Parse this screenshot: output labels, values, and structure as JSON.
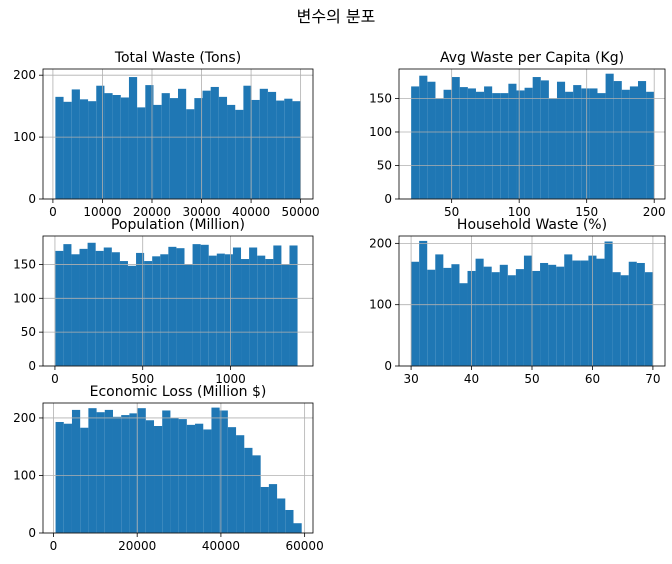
{
  "figure": {
    "suptitle": "변수의 분포",
    "bar_color": "#1f77b4",
    "grid_color": "#b0b0b0"
  },
  "chart_data": [
    {
      "type": "bar",
      "title": "Total Waste (Tons)",
      "xlim": [
        -2000,
        52500
      ],
      "ylim": [
        0,
        210
      ],
      "xticks": [
        0,
        10000,
        20000,
        30000,
        40000,
        50000
      ],
      "xtick_labels": [
        "0",
        "10000",
        "20000",
        "30000",
        "40000",
        "50000"
      ],
      "yticks": [
        0,
        100,
        200
      ],
      "ytick_labels": [
        "0",
        "100",
        "200"
      ],
      "bin_edges": [
        500,
        2150,
        3800,
        5450,
        7100,
        8750,
        10400,
        12050,
        13700,
        15350,
        17000,
        18650,
        20300,
        21950,
        23600,
        25250,
        26900,
        28550,
        30200,
        31850,
        33500,
        35150,
        36800,
        38450,
        40100,
        41750,
        43400,
        45050,
        46700,
        48350,
        50000
      ],
      "values": [
        165,
        157,
        177,
        161,
        158,
        183,
        171,
        168,
        164,
        197,
        148,
        184,
        152,
        171,
        163,
        178,
        145,
        163,
        175,
        181,
        165,
        152,
        144,
        183,
        160,
        178,
        173,
        159,
        162,
        158
      ],
      "grid": true
    },
    {
      "type": "bar",
      "title": "Avg Waste per Capita (Kg)",
      "xlim": [
        11,
        208
      ],
      "ylim": [
        0,
        194
      ],
      "xticks": [
        50,
        100,
        150,
        200
      ],
      "xtick_labels": [
        "50",
        "100",
        "150",
        "200"
      ],
      "yticks": [
        0,
        50,
        100,
        150
      ],
      "ytick_labels": [
        "0",
        "50",
        "100",
        "150"
      ],
      "bin_edges": [
        20,
        26,
        32,
        38,
        44,
        50,
        56,
        62,
        68,
        74,
        80,
        86,
        92,
        98,
        104,
        110,
        116,
        122,
        128,
        134,
        140,
        146,
        152,
        158,
        164,
        170,
        176,
        182,
        188,
        194,
        200
      ],
      "values": [
        168,
        184,
        175,
        150,
        163,
        182,
        167,
        165,
        160,
        168,
        158,
        158,
        172,
        162,
        166,
        182,
        177,
        150,
        175,
        160,
        170,
        165,
        165,
        158,
        187,
        176,
        163,
        168,
        176,
        160
      ],
      "grid": true
    },
    {
      "type": "bar",
      "title": "Population (Million)",
      "xlim": [
        -68,
        1470
      ],
      "ylim": [
        0,
        192
      ],
      "xticks": [
        0,
        500,
        1000
      ],
      "xtick_labels": [
        "0",
        "500",
        "1000"
      ],
      "yticks": [
        0,
        50,
        100,
        150
      ],
      "ytick_labels": [
        "0",
        "50",
        "100",
        "150"
      ],
      "bin_edges": [
        2,
        48,
        94,
        140,
        186,
        232,
        278,
        324,
        370,
        416,
        462,
        508,
        554,
        600,
        646,
        692,
        738,
        784,
        830,
        876,
        922,
        968,
        1014,
        1060,
        1106,
        1152,
        1198,
        1244,
        1290,
        1336,
        1382
      ],
      "values": [
        170,
        180,
        165,
        173,
        182,
        170,
        175,
        168,
        155,
        148,
        167,
        155,
        162,
        165,
        176,
        174,
        150,
        180,
        179,
        163,
        166,
        165,
        175,
        158,
        175,
        163,
        158,
        178,
        150,
        178
      ],
      "grid": true
    },
    {
      "type": "bar",
      "title": "Household Waste (%)",
      "xlim": [
        28,
        72
      ],
      "ylim": [
        0,
        212
      ],
      "xticks": [
        30,
        40,
        50,
        60,
        70
      ],
      "xtick_labels": [
        "30",
        "40",
        "50",
        "60",
        "70"
      ],
      "yticks": [
        0,
        100,
        200
      ],
      "ytick_labels": [
        "0",
        "100",
        "200"
      ],
      "bin_edges": [
        30,
        31.333,
        32.667,
        34,
        35.333,
        36.667,
        38,
        39.333,
        40.667,
        42,
        43.333,
        44.667,
        46,
        47.333,
        48.667,
        50,
        51.333,
        52.667,
        54,
        55.333,
        56.667,
        58,
        59.333,
        60.667,
        62,
        63.333,
        64.667,
        66,
        67.333,
        68.667,
        70
      ],
      "values": [
        170,
        204,
        157,
        182,
        160,
        166,
        135,
        155,
        175,
        162,
        153,
        165,
        148,
        158,
        180,
        155,
        168,
        165,
        162,
        182,
        172,
        172,
        180,
        175,
        203,
        153,
        148,
        170,
        168,
        153
      ],
      "grid": true
    },
    {
      "type": "bar",
      "title": "Economic Loss (Million $)",
      "xlim": [
        -2500,
        62000
      ],
      "ylim": [
        0,
        226
      ],
      "xticks": [
        0,
        20000,
        40000,
        60000
      ],
      "xtick_labels": [
        "0",
        "20000",
        "40000",
        "60000"
      ],
      "yticks": [
        0,
        100,
        200
      ],
      "ytick_labels": [
        "0",
        "100",
        "200"
      ],
      "bin_edges": [
        500,
        2460,
        4420,
        6380,
        8340,
        10300,
        12260,
        14220,
        16180,
        18140,
        20100,
        22060,
        24020,
        25980,
        27940,
        29900,
        31860,
        33820,
        35780,
        37740,
        39700,
        41660,
        43620,
        45580,
        47540,
        49500,
        51460,
        53420,
        55380,
        57340,
        59300
      ],
      "values": [
        193,
        190,
        214,
        183,
        217,
        210,
        214,
        202,
        205,
        208,
        217,
        196,
        186,
        213,
        200,
        198,
        188,
        190,
        180,
        218,
        213,
        184,
        170,
        148,
        135,
        80,
        85,
        60,
        40,
        17
      ],
      "grid": true
    }
  ]
}
